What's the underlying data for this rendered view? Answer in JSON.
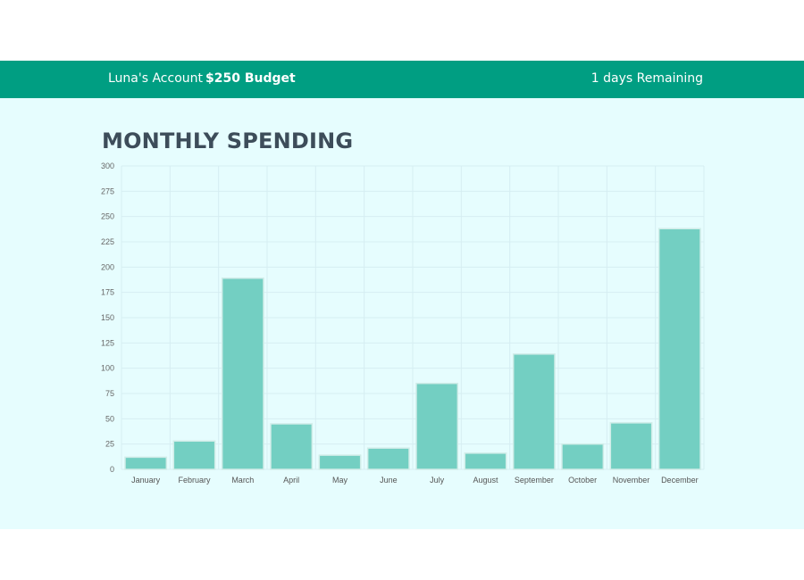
{
  "header": {
    "account": "Luna's Account",
    "budget": "$250 Budget",
    "remaining": "1 days Remaining"
  },
  "colors": {
    "header_bg": "#009e82",
    "page_bg": "#e6fdfe",
    "bar_fill": "#73cfc2",
    "bar_stroke": "#d0ece8",
    "title": "#3d4d5a"
  },
  "chart_data": {
    "type": "bar",
    "title": "MONTHLY SPENDING",
    "categories": [
      "January",
      "February",
      "March",
      "April",
      "May",
      "June",
      "July",
      "August",
      "September",
      "October",
      "November",
      "December"
    ],
    "values": [
      12,
      28,
      189,
      45,
      14,
      21,
      85,
      16,
      114,
      25,
      46,
      238
    ],
    "ylim": [
      0,
      300
    ],
    "yticks": [
      0,
      25,
      50,
      75,
      100,
      125,
      150,
      175,
      200,
      225,
      250,
      275,
      300
    ],
    "grid": true,
    "legend": "none"
  }
}
